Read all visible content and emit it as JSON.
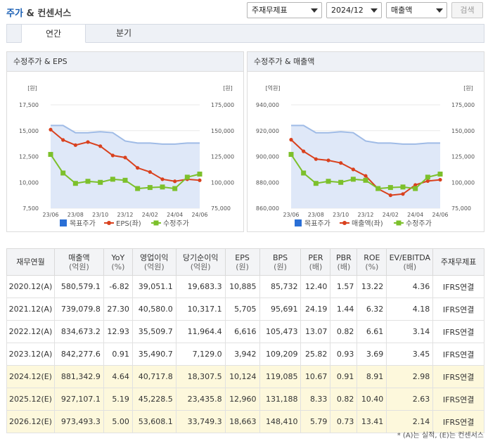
{
  "header": {
    "title_main": "주가",
    "title_amp": "&",
    "title_sub": "컨센서스",
    "selects": {
      "consolidation": "주재무제표",
      "period": "2024/12",
      "metric": "매출액"
    },
    "search_label": "검색"
  },
  "tabs": [
    {
      "label": "연간",
      "active": true
    },
    {
      "label": "분기",
      "active": false
    }
  ],
  "charts": [
    {
      "title": "수정주가 & EPS",
      "left_unit": "[원]",
      "right_unit": "[원]",
      "left_ticks": [
        "17,500",
        "15,000",
        "12,500",
        "10,000",
        "7,500"
      ],
      "right_ticks": [
        "175,000",
        "150,000",
        "125,000",
        "100,000",
        "75,000"
      ],
      "x_labels": [
        "23/06",
        "23/08",
        "23/10",
        "23/12",
        "24/02",
        "24/04",
        "24/06"
      ],
      "legend": [
        "목표주가",
        "EPS(좌)",
        "수정주가"
      ]
    },
    {
      "title": "수정주가 & 매출액",
      "left_unit": "[억원]",
      "right_unit": "[원]",
      "left_ticks": [
        "940,000",
        "920,000",
        "900,000",
        "880,000",
        "860,000"
      ],
      "right_ticks": [
        "175,000",
        "150,000",
        "125,000",
        "100,000",
        "75,000"
      ],
      "x_labels": [
        "23/06",
        "23/08",
        "23/10",
        "23/12",
        "24/02",
        "24/04",
        "24/06"
      ],
      "legend": [
        "목표주가",
        "매출액(좌)",
        "수정주가"
      ]
    }
  ],
  "chart_data": [
    {
      "type": "line",
      "title": "수정주가 & EPS",
      "x": [
        "23/06",
        "23/07",
        "23/08",
        "23/09",
        "23/10",
        "23/11",
        "23/12",
        "24/01",
        "24/02",
        "24/03",
        "24/04",
        "24/05",
        "24/06"
      ],
      "ylim_left": [
        7500,
        17500
      ],
      "ylim_right": [
        75000,
        175000
      ],
      "series": [
        {
          "name": "목표주가",
          "axis": "right",
          "style": "area",
          "color": "#b9cdef",
          "values": [
            155000,
            155000,
            148000,
            148000,
            149000,
            148000,
            140000,
            138000,
            138000,
            137000,
            137000,
            138000,
            138000
          ]
        },
        {
          "name": "EPS(좌)",
          "axis": "left",
          "style": "line",
          "color": "#d9411e",
          "values": [
            15100,
            14100,
            13600,
            13900,
            13500,
            12600,
            12400,
            11400,
            11000,
            10300,
            10100,
            10300,
            10200
          ]
        },
        {
          "name": "수정주가",
          "axis": "right",
          "style": "line",
          "color": "#7cc02b",
          "values": [
            127000,
            109000,
            99000,
            101000,
            100000,
            103000,
            102000,
            94000,
            95000,
            95500,
            94000,
            105000,
            108000
          ]
        }
      ]
    },
    {
      "type": "line",
      "title": "수정주가 & 매출액",
      "x": [
        "23/06",
        "23/07",
        "23/08",
        "23/09",
        "23/10",
        "23/11",
        "23/12",
        "24/01",
        "24/02",
        "24/03",
        "24/04",
        "24/05",
        "24/06"
      ],
      "ylim_left": [
        860000,
        940000
      ],
      "ylim_right": [
        75000,
        175000
      ],
      "series": [
        {
          "name": "목표주가",
          "axis": "right",
          "style": "area",
          "color": "#b9cdef",
          "values": [
            155000,
            155000,
            148000,
            148000,
            149000,
            148000,
            140000,
            138000,
            138000,
            137000,
            137000,
            138000,
            138000
          ]
        },
        {
          "name": "매출액(좌)",
          "axis": "left",
          "style": "line",
          "color": "#d9411e",
          "values": [
            913000,
            904000,
            898000,
            897000,
            895000,
            890000,
            885000,
            875000,
            870000,
            871000,
            878000,
            881000,
            882000
          ]
        },
        {
          "name": "수정주가",
          "axis": "right",
          "style": "line",
          "color": "#7cc02b",
          "values": [
            127000,
            109000,
            99000,
            101000,
            100000,
            103000,
            102000,
            94000,
            95000,
            95500,
            94000,
            105000,
            108000
          ]
        }
      ]
    }
  ],
  "table": {
    "headers": [
      {
        "name": "재무연월",
        "unit": ""
      },
      {
        "name": "매출액",
        "unit": "(억원)"
      },
      {
        "name": "YoY",
        "unit": "(%)"
      },
      {
        "name": "영업이익",
        "unit": "(억원)"
      },
      {
        "name": "당기순이익",
        "unit": "(억원)"
      },
      {
        "name": "EPS",
        "unit": "(원)"
      },
      {
        "name": "BPS",
        "unit": "(원)"
      },
      {
        "name": "PER",
        "unit": "(배)"
      },
      {
        "name": "PBR",
        "unit": "(배)"
      },
      {
        "name": "ROE",
        "unit": "(%)"
      },
      {
        "name": "EV/EBITDA",
        "unit": "(배)"
      },
      {
        "name": "주재무제표",
        "unit": ""
      }
    ],
    "rows": [
      {
        "estimate": false,
        "cells": [
          "2020.12(A)",
          "580,579.1",
          "-6.82",
          "39,051.1",
          "19,683.3",
          "10,885",
          "85,732",
          "12.40",
          "1.57",
          "13.22",
          "4.36",
          "IFRS연결"
        ]
      },
      {
        "estimate": false,
        "cells": [
          "2021.12(A)",
          "739,079.8",
          "27.30",
          "40,580.0",
          "10,317.1",
          "5,705",
          "95,691",
          "24.19",
          "1.44",
          "6.32",
          "4.18",
          "IFRS연결"
        ]
      },
      {
        "estimate": false,
        "cells": [
          "2022.12(A)",
          "834,673.2",
          "12.93",
          "35,509.7",
          "11,964.4",
          "6,616",
          "105,473",
          "13.07",
          "0.82",
          "6.61",
          "3.14",
          "IFRS연결"
        ]
      },
      {
        "estimate": false,
        "cells": [
          "2023.12(A)",
          "842,277.6",
          "0.91",
          "35,490.7",
          "7,129.0",
          "3,942",
          "109,209",
          "25.82",
          "0.93",
          "3.69",
          "3.45",
          "IFRS연결"
        ]
      },
      {
        "estimate": true,
        "cells": [
          "2024.12(E)",
          "881,342.9",
          "4.64",
          "40,717.8",
          "18,307.5",
          "10,124",
          "119,085",
          "10.67",
          "0.91",
          "8.91",
          "2.98",
          "IFRS연결"
        ]
      },
      {
        "estimate": true,
        "cells": [
          "2025.12(E)",
          "927,107.1",
          "5.19",
          "45,228.5",
          "23,435.8",
          "12,960",
          "131,188",
          "8.33",
          "0.82",
          "10.40",
          "2.63",
          "IFRS연결"
        ]
      },
      {
        "estimate": true,
        "cells": [
          "2026.12(E)",
          "973,493.3",
          "5.00",
          "53,608.1",
          "33,749.3",
          "18,663",
          "148,410",
          "5.79",
          "0.73",
          "13.41",
          "2.14",
          "IFRS연결"
        ]
      }
    ]
  },
  "footnote": "* (A)는 실적, (E)는 컨센서스"
}
